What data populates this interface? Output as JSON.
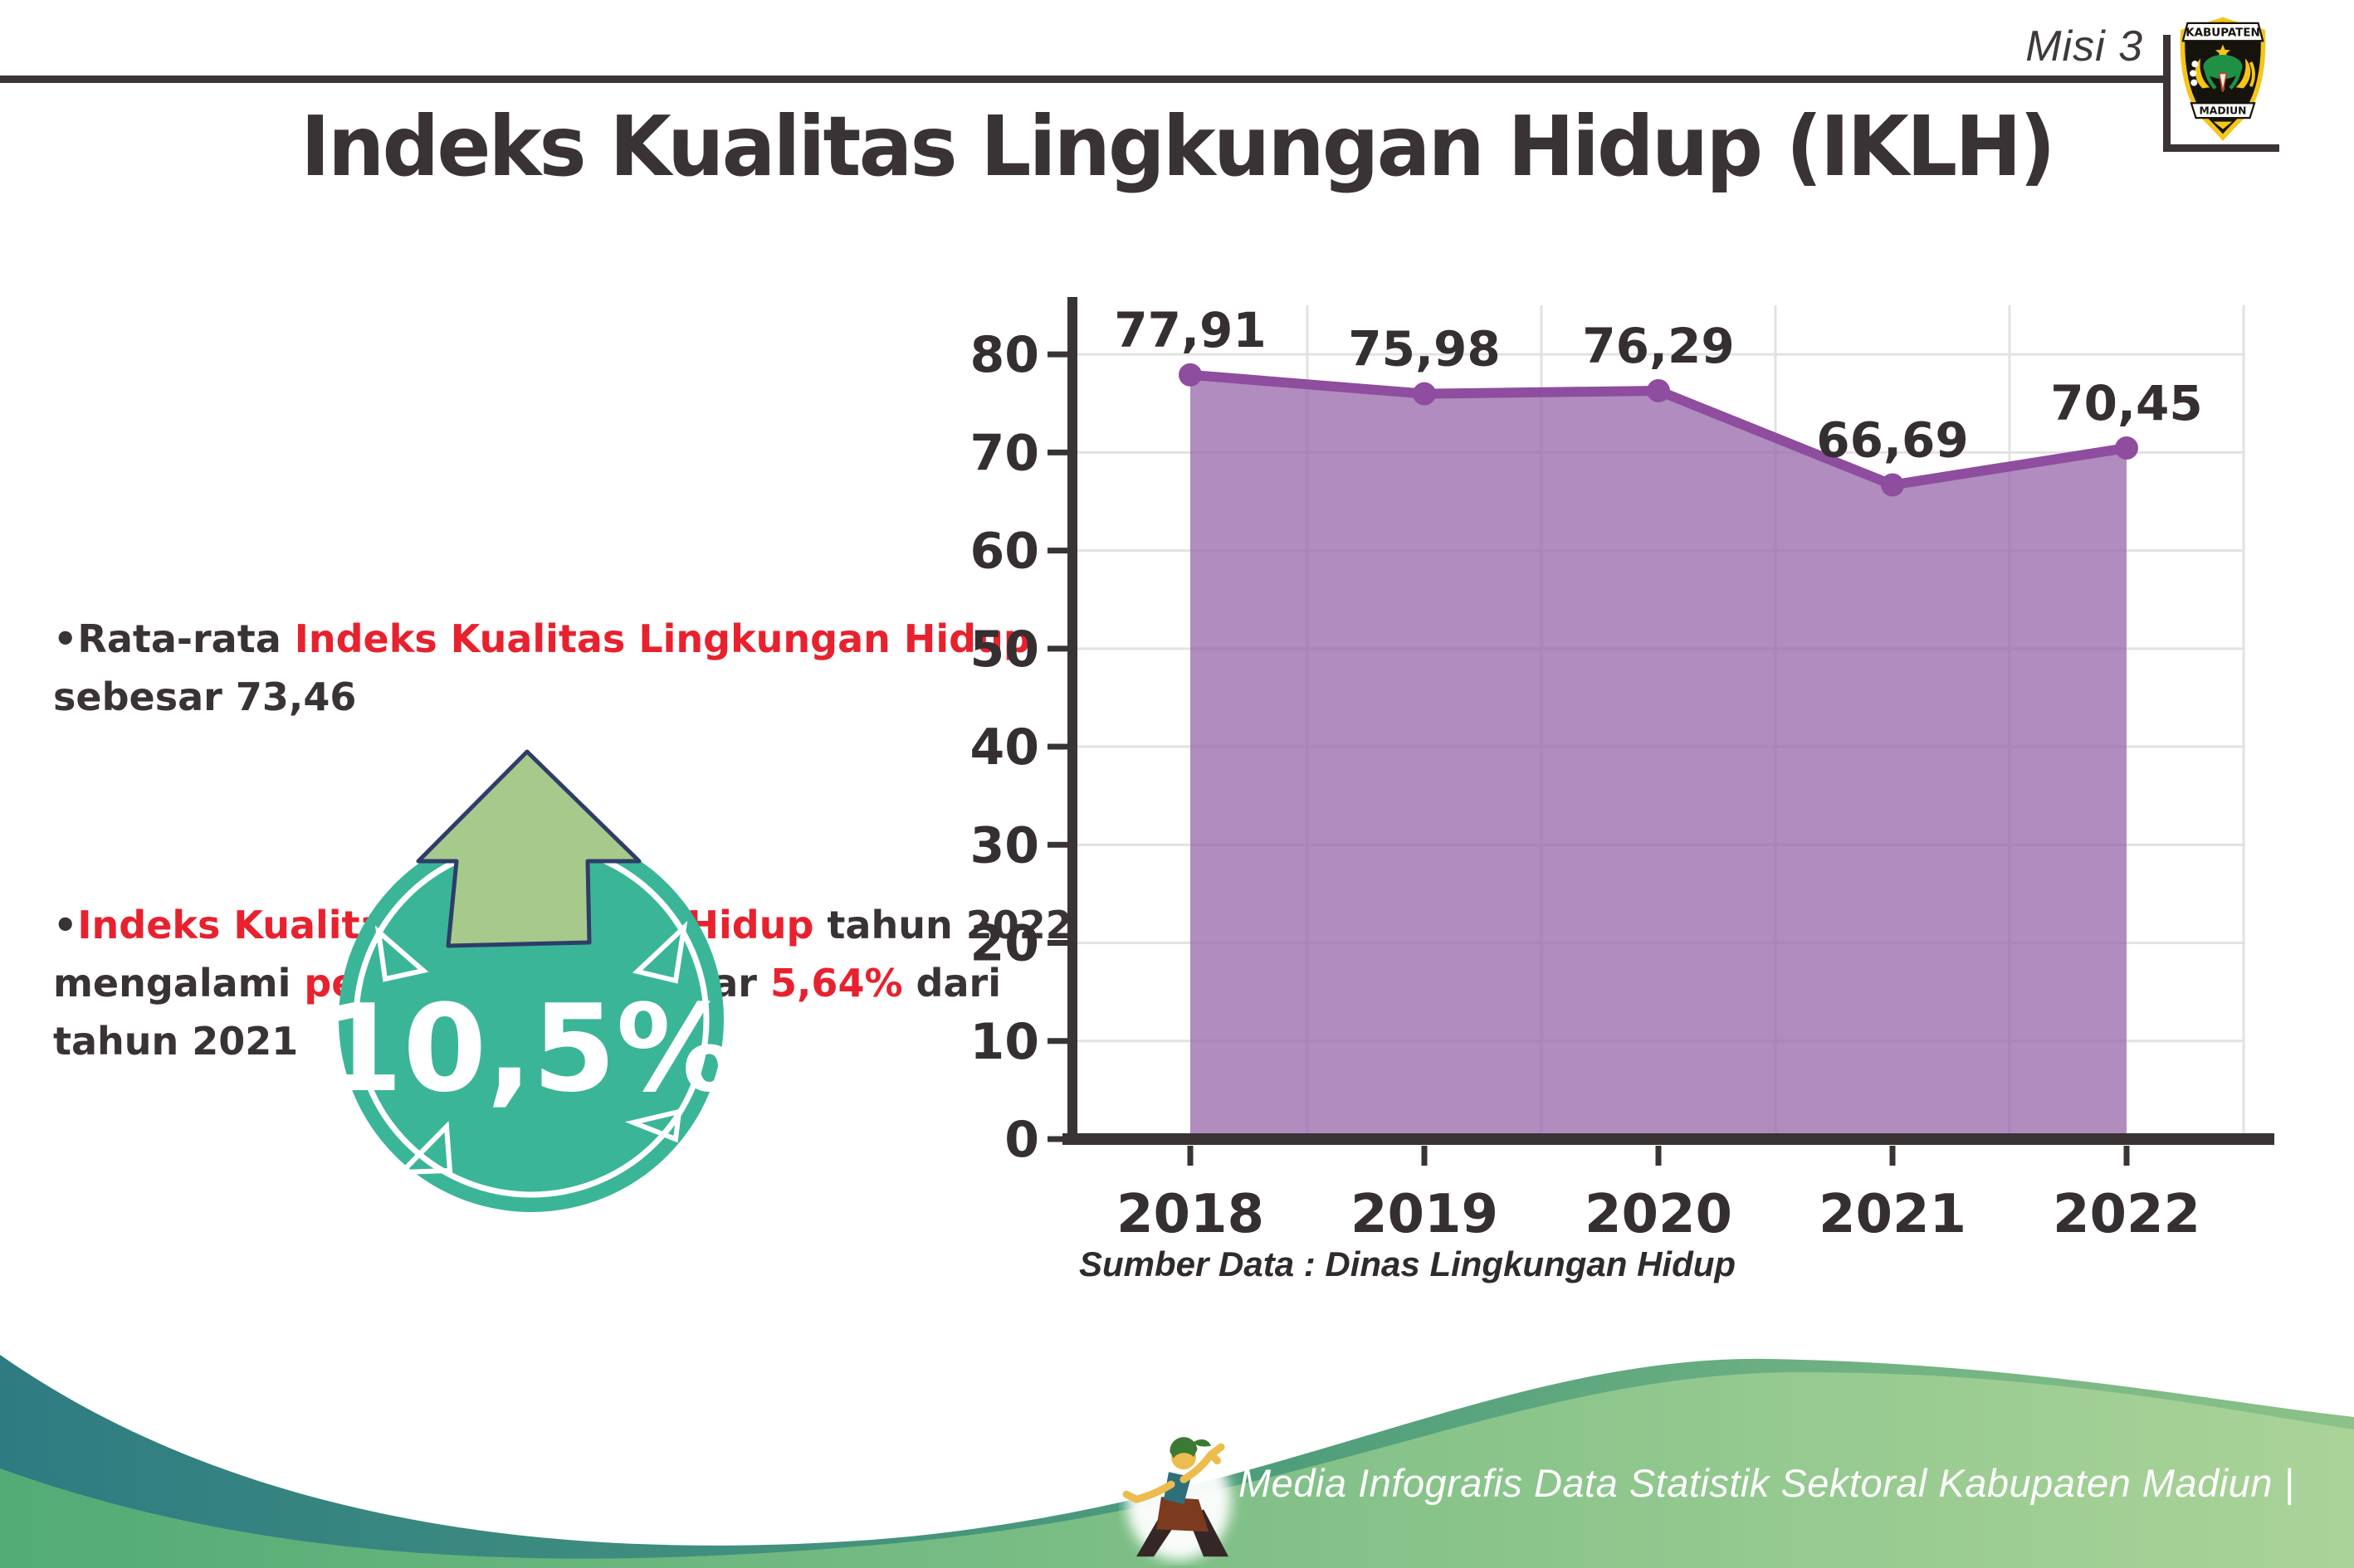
{
  "header": {
    "mission": "Misi 3",
    "title": "Indeks Kualitas Lingkungan Hidup (IKLH)"
  },
  "logo": {
    "top_banner": "KABUPATEN",
    "bottom_banner": "MADIUN"
  },
  "bullets": [
    {
      "segments": [
        {
          "text": "•Rata-rata ",
          "color": "dark"
        },
        {
          "text": "Indeks Kualitas Lingkungan Hidup",
          "color": "red"
        },
        {
          "text": "\nsebesar 73,46",
          "color": "dark"
        }
      ]
    },
    {
      "segments": [
        {
          "text": "•",
          "color": "dark"
        },
        {
          "text": "Indeks Kualitas Lingkungan Hidup",
          "color": "red"
        },
        {
          "text": " tahun 2022\nmengalami ",
          "color": "dark"
        },
        {
          "text": "peningkatan",
          "color": "red"
        },
        {
          "text": " sebesar ",
          "color": "dark"
        },
        {
          "text": "5,64%",
          "color": "red"
        },
        {
          "text": " dari\ntahun 2021",
          "color": "dark"
        }
      ]
    }
  ],
  "badge": {
    "value": "10,5%",
    "circle_color": "#3BB598",
    "arrow_color": "#A6C98C",
    "arrow_outline": "#2E3D68"
  },
  "chart_data": {
    "type": "area",
    "categories": [
      "2018",
      "2019",
      "2020",
      "2021",
      "2022"
    ],
    "values": [
      77.91,
      75.98,
      76.29,
      66.69,
      70.45
    ],
    "point_labels": [
      "77,91",
      "75,98",
      "76,29",
      "66,69",
      "70,45"
    ],
    "title": "",
    "xlabel": "",
    "ylabel": "",
    "ylim": [
      0,
      85
    ],
    "yticks": [
      0,
      10,
      20,
      30,
      40,
      50,
      60,
      70,
      80
    ],
    "grid": true,
    "legend": false,
    "source": "Sumber Data : Dinas Lingkungan Hidup",
    "colors": {
      "line": "#8E4D9E",
      "fill": "rgba(151,101,170,0.75)",
      "grid": "#E2E2E2",
      "axis": "#3A3334",
      "text": "#352F31"
    }
  },
  "footer": {
    "caption": "Media Infografis Data Statistik Sektoral Kabupaten Madiun |"
  },
  "colors": {
    "accent_red": "#E8212E",
    "dark_text": "#3A3335",
    "badge_teal": "#3BB598",
    "arrow_green": "#A6C98C",
    "footer_teal": "#2E7C82",
    "footer_green": "#AAD398"
  }
}
